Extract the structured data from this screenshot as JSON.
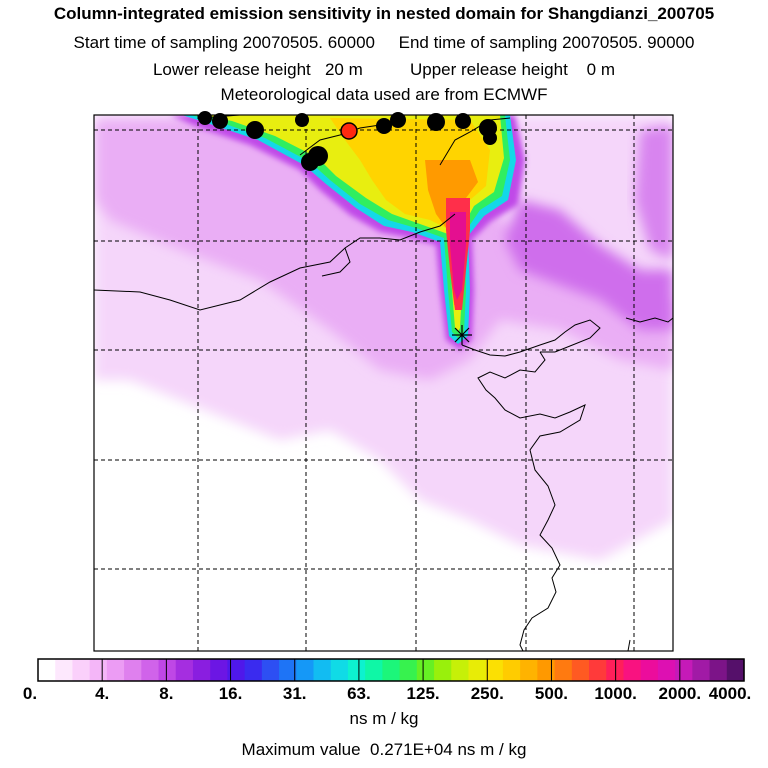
{
  "header": {
    "title": "Column-integrated emission sensitivity in nested domain for Shangdianzi_200705",
    "line2": "Start time of sampling 20070505. 60000     End time of sampling 20070505. 90000",
    "line3": "Lower release height   20 m          Upper release height    0 m",
    "line4": "Meteorological data used are from ECMWF"
  },
  "colorbar": {
    "labels": [
      "0.",
      "4.",
      "8.",
      "16.",
      "31.",
      "63.",
      "125.",
      "250.",
      "500.",
      "1000.",
      "2000.",
      "4000."
    ],
    "colors": [
      "#ffffff",
      "#fde8fd",
      "#fad0fb",
      "#f4b6f8",
      "#ec9cf4",
      "#df80ee",
      "#d063ea",
      "#bf47e6",
      "#a52ee0",
      "#8a1ee0",
      "#6c16e4",
      "#4f18ea",
      "#3a2bef",
      "#2d4ff3",
      "#1e74f6",
      "#1598f7",
      "#12bcf2",
      "#10dbe6",
      "#0df2cf",
      "#0ff7a6",
      "#1cf67a",
      "#37f24e",
      "#66f024",
      "#99f00c",
      "#c6f008",
      "#e8ec06",
      "#fbe003",
      "#ffcc00",
      "#ffb300",
      "#ff9900",
      "#ff7a10",
      "#ff5a22",
      "#ff3a3a",
      "#ff1f5a",
      "#f91280",
      "#ec0c9c",
      "#dd10b2",
      "#c51ab8",
      "#a11aa6",
      "#7c1488",
      "#55106a"
    ],
    "units": "ns m / kg"
  },
  "footer": {
    "max_value": "Maximum value  0.271E+04 ns m / kg"
  },
  "map": {
    "receptor_marker": "star",
    "coastline_color": "#000000",
    "background_sensitivity_color": "#f0c4f8",
    "plume_colors": [
      "#c04ae8",
      "#14d8e8",
      "#30ee60",
      "#d8ee10",
      "#ffd400",
      "#ff9a00",
      "#ff2f4a",
      "#e40f90"
    ],
    "release_marker_color": "#ff2a10"
  }
}
